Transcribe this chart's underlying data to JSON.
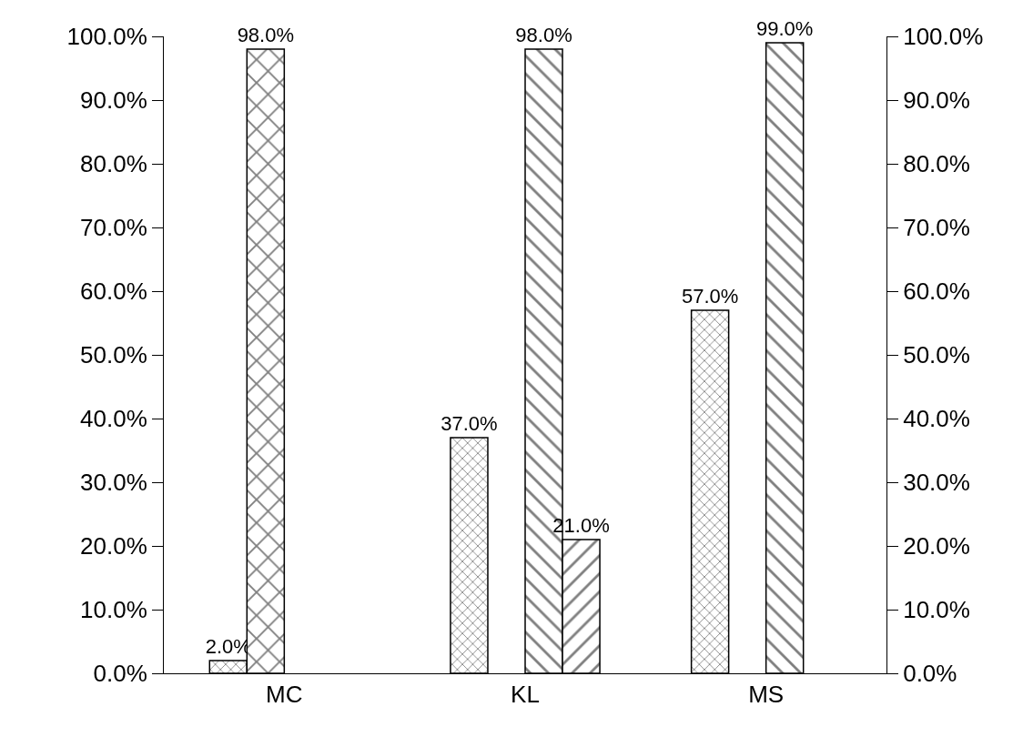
{
  "chart_data": {
    "type": "bar",
    "categories": [
      "MC",
      "KL",
      "MS"
    ],
    "series": [
      {
        "color": "#000000",
        "values": [
          2,
          37,
          57
        ],
        "value_labels": [
          "2.0%",
          "37.0%",
          "57.0%"
        ]
      },
      {
        "color": "#000000",
        "values": [
          98,
          null,
          null
        ],
        "value_labels": [
          "98.0%",
          null,
          null
        ]
      },
      {
        "color": "#000000",
        "values": [
          null,
          98,
          99
        ],
        "value_labels": [
          null,
          "98.0%",
          "99.0%"
        ]
      },
      {
        "color": "#000000",
        "values": [
          null,
          21,
          null
        ],
        "value_labels": [
          null,
          "21.0%",
          null
        ]
      }
    ],
    "ylim": [
      0,
      100
    ],
    "yticks": [
      {
        "value": 0,
        "label": "0.0%"
      },
      {
        "value": 10,
        "label": "10.0%"
      },
      {
        "value": 20,
        "label": "20.0%"
      },
      {
        "value": 30,
        "label": "30.0%"
      },
      {
        "value": 40,
        "label": "40.0%"
      },
      {
        "value": 50,
        "label": "50.0%"
      },
      {
        "value": 60,
        "label": "60.0%"
      },
      {
        "value": 70,
        "label": "70.0%"
      },
      {
        "value": 80,
        "label": "80.0%"
      },
      {
        "value": 90,
        "label": "90.0%"
      },
      {
        "value": 100,
        "label": "100.0%"
      }
    ],
    "y2lim": [
      0,
      100
    ],
    "y2ticks": [
      {
        "value": 0,
        "label": "0.0%"
      },
      {
        "value": 10,
        "label": "10.0%"
      },
      {
        "value": 20,
        "label": "20.0%"
      },
      {
        "value": 30,
        "label": "30.0%"
      },
      {
        "value": 40,
        "label": "40.0%"
      },
      {
        "value": 50,
        "label": "50.0%"
      },
      {
        "value": 60,
        "label": "60.0%"
      },
      {
        "value": 70,
        "label": "70.0%"
      },
      {
        "value": 80,
        "label": "80.0%"
      },
      {
        "value": 90,
        "label": "90.0%"
      },
      {
        "value": 100,
        "label": "100.0%"
      }
    ],
    "stacked": false
  }
}
